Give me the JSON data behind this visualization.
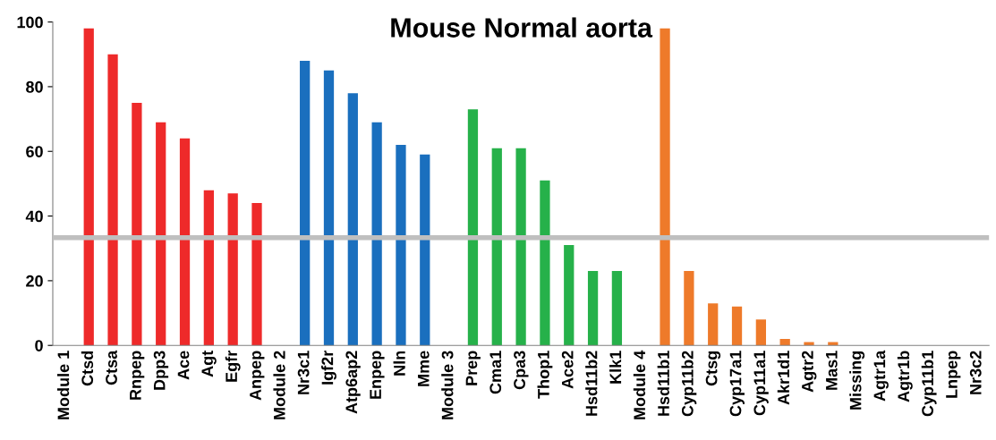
{
  "chart_data": {
    "type": "bar",
    "title": "Mouse Normal aorta",
    "categories": [
      "Module 1",
      "Ctsd",
      "Ctsa",
      "Rnpep",
      "Dpp3",
      "Ace",
      "Agt",
      "Egfr",
      "Anpep",
      "Module 2",
      "Nr3c1",
      "Igf2r",
      "Atp6ap2",
      "Enpep",
      "Nln",
      "Mme",
      "Module 3",
      "Prep",
      "Cma1",
      "Cpa3",
      "Thop1",
      "Ace2",
      "Hsd11b2",
      "Klk1",
      "Module 4",
      "Hsd11b1",
      "Cyp11b2",
      "Ctsg",
      "Cyp17a1",
      "Cyp11a1",
      "Akr1d1",
      "Agtr2",
      "Mas1",
      "Missing",
      "Agtr1a",
      "Agtr1b",
      "Cyp11b1",
      "Lnpep",
      "Nr3c2"
    ],
    "values": [
      null,
      98,
      90,
      75,
      69,
      64,
      48,
      47,
      44,
      null,
      88,
      85,
      78,
      69,
      62,
      59,
      null,
      73,
      61,
      61,
      51,
      31,
      23,
      23,
      null,
      98,
      23,
      13,
      12,
      8,
      2,
      1,
      1,
      0,
      0,
      0,
      0,
      0,
      0
    ],
    "colors": [
      "#ee2a2a",
      "#ee2a2a",
      "#ee2a2a",
      "#ee2a2a",
      "#ee2a2a",
      "#ee2a2a",
      "#ee2a2a",
      "#ee2a2a",
      "#ee2a2a",
      "#1a6fbe",
      "#1a6fbe",
      "#1a6fbe",
      "#1a6fbe",
      "#1a6fbe",
      "#1a6fbe",
      "#1a6fbe",
      "#26b14a",
      "#26b14a",
      "#26b14a",
      "#26b14a",
      "#26b14a",
      "#26b14a",
      "#26b14a",
      "#26b14a",
      "#ee7a2a",
      "#ee7a2a",
      "#ee7a2a",
      "#ee7a2a",
      "#ee7a2a",
      "#ee7a2a",
      "#ee7a2a",
      "#ee7a2a",
      "#ee7a2a",
      "#ee7a2a",
      "#ee7a2a",
      "#ee7a2a",
      "#ee7a2a",
      "#ee7a2a",
      "#ee7a2a"
    ],
    "ylim": [
      0,
      100
    ],
    "yticks": [
      0,
      20,
      40,
      60,
      80,
      100
    ],
    "grid": false,
    "legend": false,
    "ref_lines": [
      {
        "axis": "y",
        "value": 33.3,
        "color": "#bfbfbf"
      }
    ]
  }
}
